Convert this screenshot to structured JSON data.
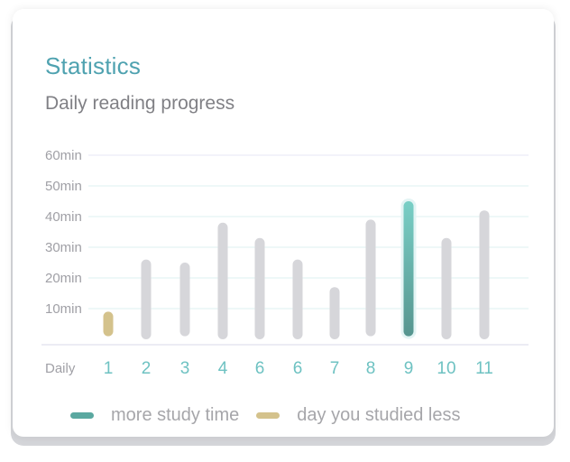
{
  "title": "Statistics",
  "subtitle": "Daily reading progress",
  "colors": {
    "title": "#4fa2b0",
    "bar_default": "#d6d6da",
    "bar_more": "#5aa8a0",
    "bar_less": "#d4c28c",
    "day_label": "#6ec2c2",
    "tick_label": "#a0a0a6",
    "grid": "#e4f3f4"
  },
  "legend": [
    {
      "label": "more study time",
      "color": "#5aa8a0",
      "icon": "teal-pill-swatch"
    },
    {
      "label": "day you studied less",
      "color": "#d4c28c",
      "icon": "gold-pill-swatch"
    }
  ],
  "chart_data": {
    "type": "bar",
    "title": "Statistics",
    "subtitle": "Daily reading progress",
    "xlabel": "Daily",
    "ylabel": "",
    "y_ticks": [
      "10min",
      "20min",
      "30min",
      "40min",
      "50min",
      "60min"
    ],
    "y_tick_values": [
      10,
      20,
      30,
      40,
      50,
      60
    ],
    "ylim": [
      0,
      60
    ],
    "grid": true,
    "legend_position": "bottom",
    "categories": [
      "1",
      "2",
      "3",
      "4",
      "6",
      "6",
      "7",
      "8",
      "9",
      "10",
      "11"
    ],
    "values": [
      {
        "low": 1,
        "high": 9
      },
      {
        "low": 0,
        "high": 26
      },
      {
        "low": 1,
        "high": 25
      },
      {
        "low": 0,
        "high": 38
      },
      {
        "low": 0,
        "high": 33
      },
      {
        "low": 0,
        "high": 26
      },
      {
        "low": 0,
        "high": 17
      },
      {
        "low": 1,
        "high": 39
      },
      {
        "low": 1,
        "high": 45
      },
      {
        "low": 0,
        "high": 33
      },
      {
        "low": 0,
        "high": 42
      }
    ],
    "highlight": {
      "more_study_time": "9",
      "day_you_studied_less": "1"
    }
  }
}
